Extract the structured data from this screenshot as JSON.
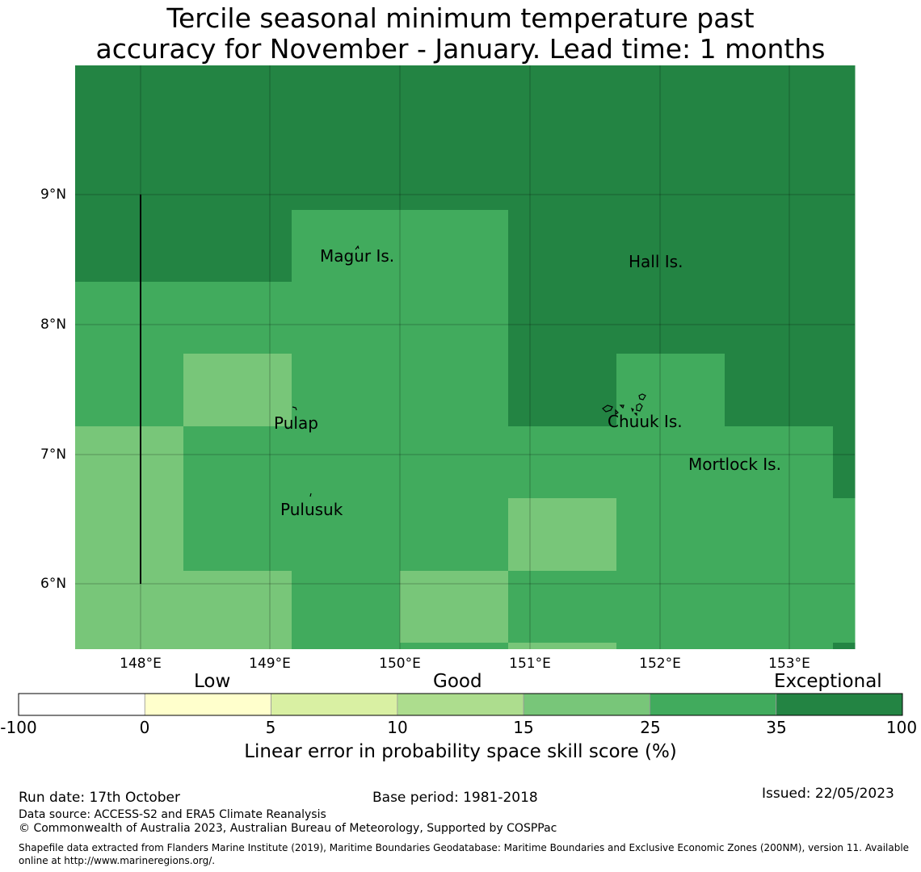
{
  "title": {
    "line1": "Tercile seasonal minimum temperature past",
    "line2": "accuracy for November - January. Lead time: 1 months"
  },
  "map": {
    "lat_labels": [
      "9°N",
      "8°N",
      "7°N",
      "6°N"
    ],
    "lon_labels": [
      "148°E",
      "149°E",
      "150°E",
      "151°E",
      "152°E",
      "153°E"
    ],
    "places": {
      "magur": "Magur Is.",
      "hall": "Hall Is.",
      "pulap": "Pulap",
      "chuuk": "Chuuk Is.",
      "mortlock": "Mortlock Is.",
      "pulusuk": "Pulusuk"
    },
    "colors": {
      "c15_25": "#78c679",
      "c25_35": "#41ab5d",
      "c35_100": "#238443"
    },
    "skill_grid_rows": [
      [
        "c35_100",
        "c35_100",
        "c35_100",
        "c35_100",
        "c35_100",
        "c35_100",
        "c35_100",
        "c35_100"
      ],
      [
        "c35_100",
        "c35_100",
        "c35_100",
        "c35_100",
        "c35_100",
        "c35_100",
        "c35_100",
        "c35_100"
      ],
      [
        "c35_100",
        "c35_100",
        "c25_35",
        "c25_35",
        "c35_100",
        "c35_100",
        "c35_100",
        "c35_100"
      ],
      [
        "c25_35",
        "c25_35",
        "c25_35",
        "c25_35",
        "c35_100",
        "c35_100",
        "c35_100",
        "c35_100"
      ],
      [
        "c25_35",
        "c15_25",
        "c25_35",
        "c25_35",
        "c35_100",
        "c25_35",
        "c35_100",
        "c35_100"
      ],
      [
        "c15_25",
        "c25_35",
        "c25_35",
        "c25_35",
        "c25_35",
        "c25_35",
        "c25_35",
        "c35_100"
      ],
      [
        "c15_25",
        "c25_35",
        "c25_35",
        "c25_35",
        "c15_25",
        "c25_35",
        "c25_35",
        "c25_35"
      ],
      [
        "c15_25",
        "c15_25",
        "c25_35",
        "c15_25",
        "c25_35",
        "c25_35",
        "c25_35",
        "c25_35"
      ]
    ]
  },
  "colorbar": {
    "categories": {
      "low": "Low",
      "good": "Good",
      "exceptional": "Exceptional"
    },
    "ticks": [
      "-100",
      "0",
      "5",
      "10",
      "15",
      "25",
      "35",
      "100"
    ],
    "segment_colors": [
      "#ffffff",
      "#ffffcc",
      "#d9f0a3",
      "#addd8e",
      "#78c679",
      "#41ab5d",
      "#238443"
    ],
    "label": "Linear error in probability space skill score (%)"
  },
  "footer": {
    "run_date": "Run date: 17th October",
    "base_period": "Base period: 1981-2018",
    "issued": "Issued: 22/05/2023",
    "data_source": "Data source: ACCESS-S2 and ERA5 Climate Reanalysis",
    "copyright": "© Commonwealth of Australia 2023, Australian Bureau of Meteorology, Supported by COSPPac",
    "shapefile": "Shapefile data extracted from Flanders Marine Institute (2019), Maritime Boundaries Geodatabase: Maritime Boundaries and Exclusive Economic Zones (200NM), version 11. Available online at http://www.marineregions.org/."
  }
}
